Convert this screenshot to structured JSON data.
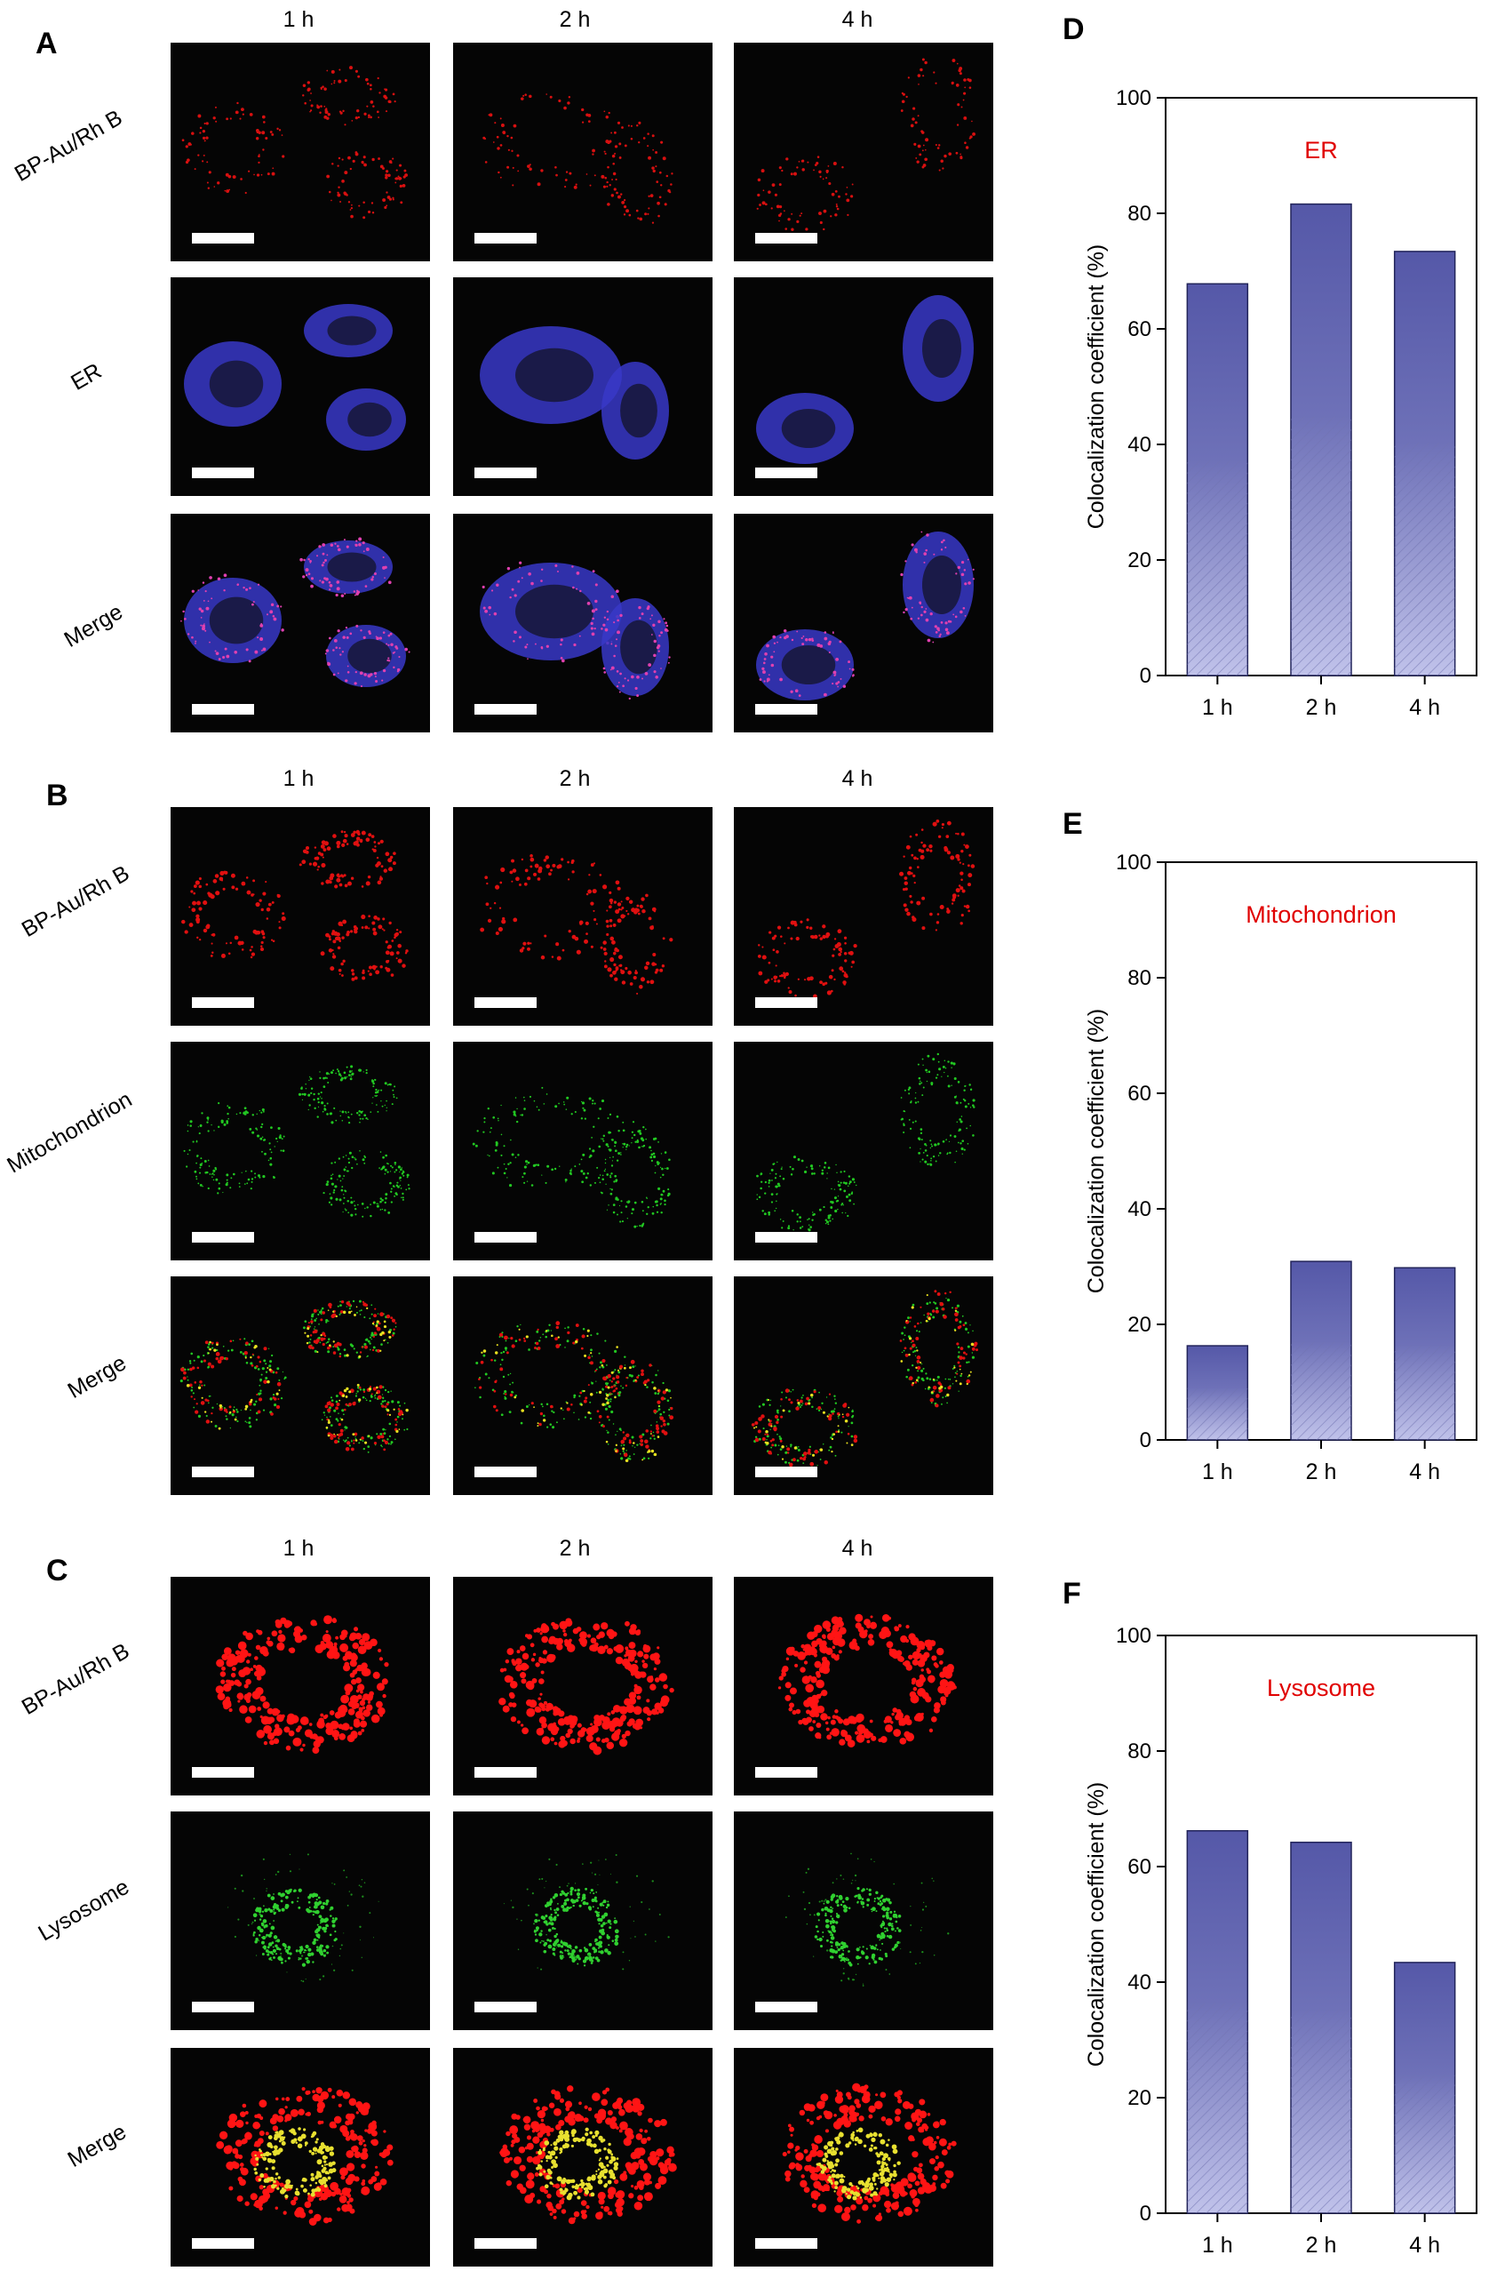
{
  "panels": {
    "A": {
      "letter": "A",
      "rows": [
        "BP-Au/Rh B",
        "ER",
        "Merge"
      ],
      "cols": [
        "1 h",
        "2 h",
        "4 h"
      ],
      "colors": [
        "#e01010",
        "#3a3ad8",
        "merge-blue"
      ]
    },
    "B": {
      "letter": "B",
      "rows": [
        "BP-Au/Rh B",
        "Mitochondrion",
        "Merge"
      ],
      "cols": [
        "1 h",
        "2 h",
        "4 h"
      ],
      "colors": [
        "#e01010",
        "#22c822",
        "merge-green"
      ]
    },
    "C": {
      "letter": "C",
      "rows": [
        "BP-Au/Rh B",
        "Lysosome",
        "Merge"
      ],
      "cols": [
        "1 h",
        "2 h",
        "4 h"
      ],
      "colors": [
        "#e01010",
        "#22c822",
        "merge-lyso"
      ]
    }
  },
  "chart_data": [
    {
      "panel": "D",
      "type": "bar",
      "title": "ER",
      "categories": [
        "1 h",
        "2 h",
        "4 h"
      ],
      "values": [
        67.8,
        81.6,
        73.4
      ],
      "xlabel": "",
      "ylabel": "Colocalization coefficient (%)",
      "ylim": [
        0,
        100
      ],
      "yticks": [
        0,
        20,
        40,
        60,
        80,
        100
      ],
      "grid": false,
      "title_color": "#e00000",
      "bar_color": "#5558a8"
    },
    {
      "panel": "E",
      "type": "bar",
      "title": "Mitochondrion",
      "categories": [
        "1 h",
        "2 h",
        "4 h"
      ],
      "values": [
        16.3,
        30.9,
        29.8
      ],
      "xlabel": "",
      "ylabel": "Colocalization coefficient (%)",
      "ylim": [
        0,
        100
      ],
      "yticks": [
        0,
        20,
        40,
        60,
        80,
        100
      ],
      "grid": false,
      "title_color": "#e00000",
      "bar_color": "#5558a8"
    },
    {
      "panel": "F",
      "type": "bar",
      "title": "Lysosome",
      "categories": [
        "1 h",
        "2 h",
        "4 h"
      ],
      "values": [
        66.2,
        64.2,
        43.4
      ],
      "xlabel": "",
      "ylabel": "Colocalization coefficient (%)",
      "ylim": [
        0,
        100
      ],
      "yticks": [
        0,
        20,
        40,
        60,
        80,
        100
      ],
      "grid": false,
      "title_color": "#e00000",
      "bar_color": "#5558a8"
    }
  ]
}
